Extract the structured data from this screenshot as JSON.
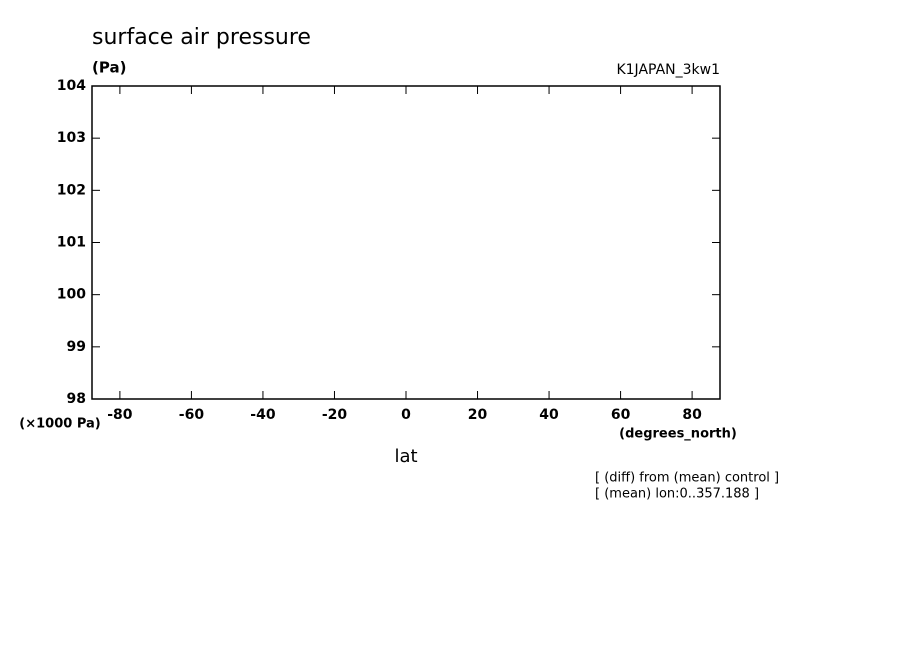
{
  "chart_data": {
    "type": "line",
    "title": "surface air pressure",
    "y_units": "(Pa)",
    "dataset": "K1JAPAN_3kw1",
    "y_scale_label": "(×1000 Pa)",
    "x_units": "(degrees_north)",
    "x_label": "lat",
    "annotations": [
      "[ (diff) from (mean) control ]",
      "[ (mean) lon:0..357.188 ]"
    ],
    "series": [],
    "xlim": [
      -87.8,
      87.8
    ],
    "xticks": [
      -80,
      -60,
      -40,
      -20,
      0,
      20,
      40,
      60,
      80
    ],
    "ylim": [
      98,
      104
    ],
    "yticks": [
      98,
      99,
      100,
      101,
      102,
      103,
      104
    ]
  }
}
